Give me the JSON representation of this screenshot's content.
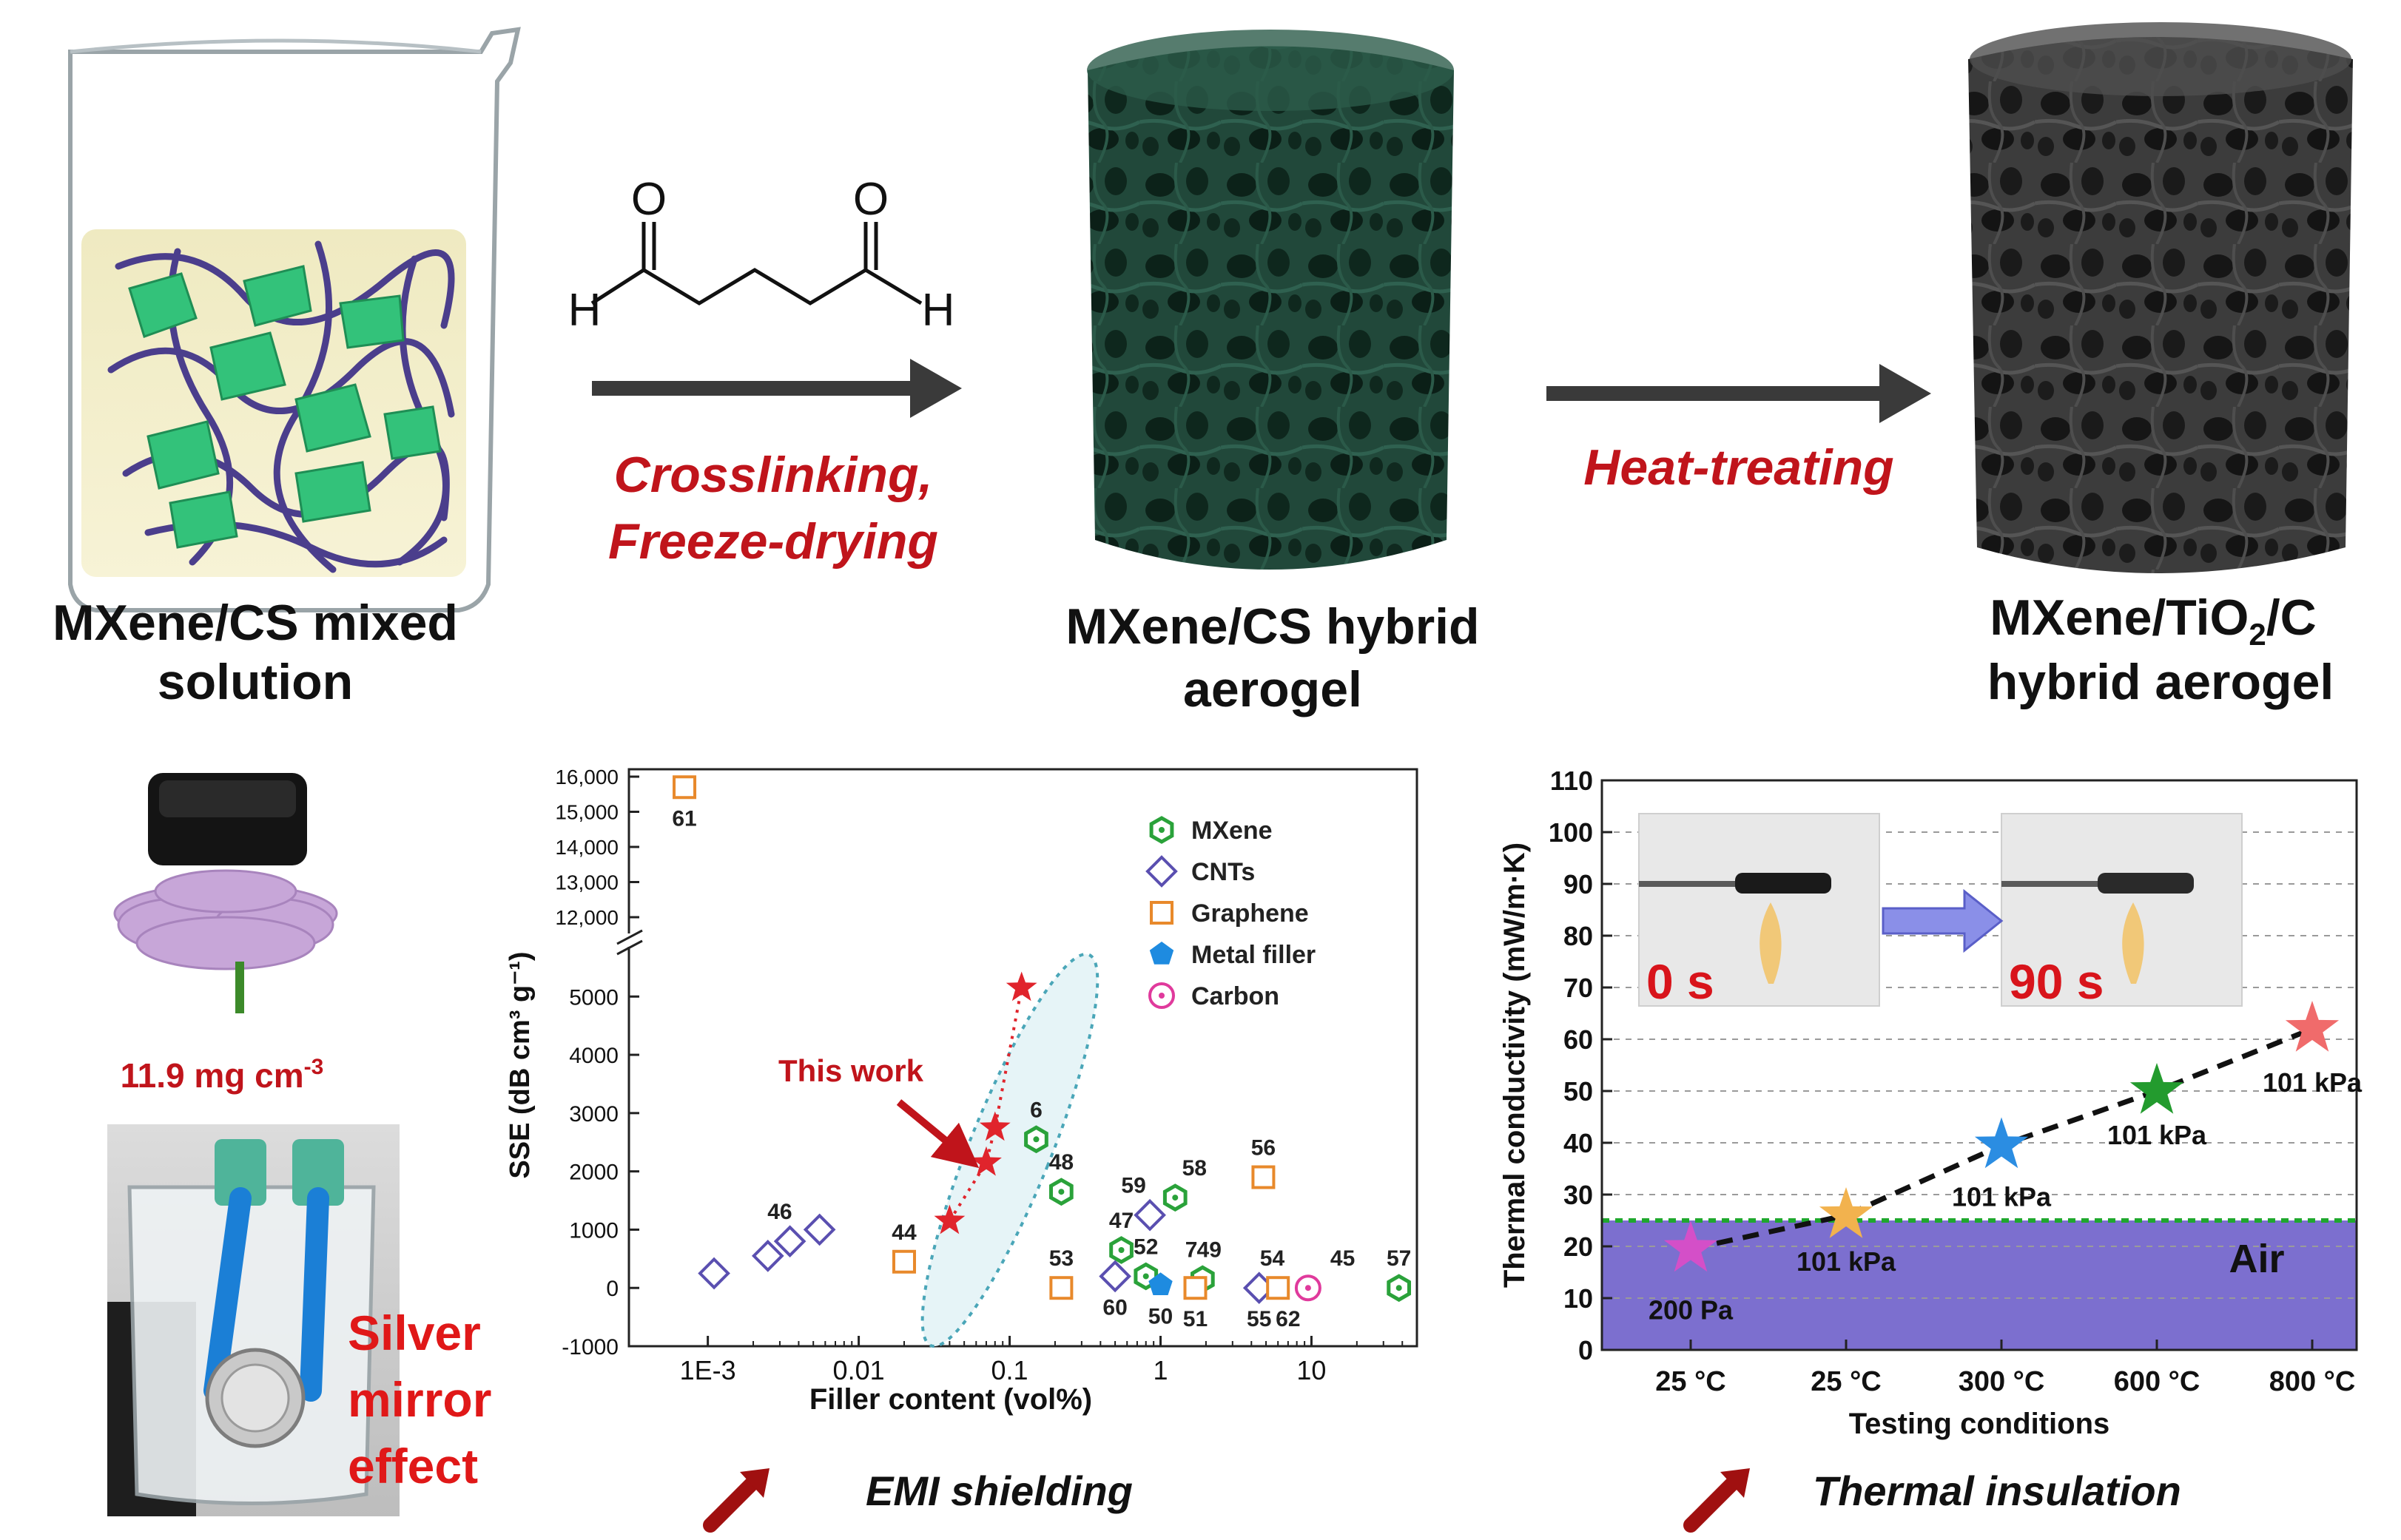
{
  "process": {
    "step1_label_line1": "MXene/CS mixed",
    "step1_label_line2": "solution",
    "step2_label_line1": "MXene/CS hybrid",
    "step2_label_line2": "aerogel",
    "step3_label_line1_a": "MXene/TiO",
    "step3_label_line1_sub": "2",
    "step3_label_line1_b": "/C",
    "step3_label_line2": "hybrid aerogel",
    "arrow1_label_line1": "Crosslinking,",
    "arrow1_label_line2": "Freeze-drying",
    "arrow2_label": "Heat-treating",
    "molecule_atom_o": "O",
    "molecule_atom_h": "H"
  },
  "left_panel": {
    "density_value": "11.9 mg cm",
    "density_exp": "-3",
    "silver_line1": "Silver",
    "silver_line2": "mirror",
    "silver_line3": "effect"
  },
  "captions": {
    "emi": "EMI shielding",
    "thermal": "Thermal insulation"
  },
  "colors": {
    "caption_red": "#c0141b",
    "mxene_green": "#2aa23a",
    "cnts_purple": "#5a4fb0",
    "graphene_orange": "#e8892b",
    "metal_blue": "#1e8be0",
    "carbon_pink": "#e03a9c",
    "air_fill": "#7c6fcf",
    "air_line": "#1fa82e"
  },
  "chart_data": [
    {
      "type": "scatter",
      "xlabel": "Filler content (vol%)",
      "ylabel": "SSE (dB cm³ g⁻¹)",
      "x_scale": "log",
      "xlim": [
        0.0003,
        50
      ],
      "x_ticks": [
        "1E-3",
        "0.01",
        "0.1",
        "1",
        "10"
      ],
      "y_ticks_lower": [
        "-1000",
        "0",
        "1000",
        "2000",
        "3000",
        "4000",
        "5000"
      ],
      "y_ticks_upper": [
        "12,000",
        "13,000",
        "14,000",
        "15,000",
        "16,000"
      ],
      "y_break": [
        5600,
        12000
      ],
      "legend": [
        "MXene",
        "CNTs",
        "Graphene",
        "Metal filler",
        "Carbon"
      ],
      "legend_position": "top-right",
      "annotation": "This work",
      "series": [
        {
          "name": "MXene",
          "points": [
            [
              0.15,
              2550
            ],
            [
              0.22,
              1650
            ],
            [
              0.55,
              650
            ],
            [
              0.8,
              200
            ],
            [
              1.25,
              1550
            ],
            [
              1.9,
              150
            ],
            [
              38,
              0
            ]
          ]
        },
        {
          "name": "CNTs",
          "points": [
            [
              0.0011,
              250
            ],
            [
              0.0025,
              550
            ],
            [
              0.0035,
              800
            ],
            [
              0.0055,
              1000
            ],
            [
              0.5,
              200
            ],
            [
              0.85,
              1250
            ],
            [
              4.5,
              0
            ]
          ]
        },
        {
          "name": "Graphene",
          "points": [
            [
              0.0007,
              15700
            ],
            [
              0.02,
              450
            ],
            [
              0.22,
              0
            ],
            [
              1.7,
              0
            ],
            [
              4.8,
              1900
            ],
            [
              6,
              0
            ]
          ]
        },
        {
          "name": "Metal filler",
          "points": [
            [
              1.0,
              50
            ]
          ]
        },
        {
          "name": "Carbon",
          "points": [
            [
              9.5,
              0
            ]
          ]
        },
        {
          "name": "This work",
          "points": [
            [
              0.04,
              1150
            ],
            [
              0.07,
              2150
            ],
            [
              0.08,
              2750
            ],
            [
              0.12,
              5150
            ]
          ]
        }
      ],
      "point_labels": [
        {
          "text": "61",
          "x": 0.0007,
          "y": 15700,
          "pos": "below"
        },
        {
          "text": "46",
          "x": 0.003,
          "y": 800,
          "pos": "above"
        },
        {
          "text": "44",
          "x": 0.02,
          "y": 450,
          "pos": "above"
        },
        {
          "text": "6",
          "x": 0.15,
          "y": 2550,
          "pos": "above"
        },
        {
          "text": "48",
          "x": 0.22,
          "y": 1650,
          "pos": "above"
        },
        {
          "text": "53",
          "x": 0.22,
          "y": 0,
          "pos": "above"
        },
        {
          "text": "59",
          "x": 0.85,
          "y": 1250,
          "pos": "above-left"
        },
        {
          "text": "58",
          "x": 1.25,
          "y": 1550,
          "pos": "above-right"
        },
        {
          "text": "47",
          "x": 0.55,
          "y": 650,
          "pos": "above"
        },
        {
          "text": "52",
          "x": 0.8,
          "y": 200,
          "pos": "above"
        },
        {
          "text": "7",
          "x": 1.6,
          "y": 150,
          "pos": "above"
        },
        {
          "text": "49",
          "x": 2.1,
          "y": 150,
          "pos": "above"
        },
        {
          "text": "60",
          "x": 0.5,
          "y": 200,
          "pos": "below"
        },
        {
          "text": "50",
          "x": 1.0,
          "y": 50,
          "pos": "below"
        },
        {
          "text": "51",
          "x": 1.7,
          "y": 0,
          "pos": "below"
        },
        {
          "text": "56",
          "x": 4.8,
          "y": 1900,
          "pos": "above"
        },
        {
          "text": "54",
          "x": 5.5,
          "y": 0,
          "pos": "above"
        },
        {
          "text": "45",
          "x": 12,
          "y": 0,
          "pos": "above-right"
        },
        {
          "text": "55",
          "x": 4.5,
          "y": 0,
          "pos": "below"
        },
        {
          "text": "62",
          "x": 7,
          "y": 0,
          "pos": "below"
        },
        {
          "text": "57",
          "x": 38,
          "y": 0,
          "pos": "above"
        }
      ]
    },
    {
      "type": "scatter",
      "xlabel": "Testing conditions",
      "ylabel": "Thermal conductivity (mW/m·K)",
      "categories": [
        "25 °C",
        "25 °C",
        "300 °C",
        "600 °C",
        "800 °C"
      ],
      "ylim": [
        0,
        110
      ],
      "y_ticks": [
        "0",
        "10",
        "20",
        "30",
        "40",
        "50",
        "60",
        "70",
        "80",
        "90",
        "100",
        "110"
      ],
      "values": [
        19.5,
        26,
        39.5,
        50,
        62
      ],
      "point_labels": [
        "200 Pa",
        "101 kPa",
        "101 kPa",
        "101 kPa",
        "101 kPa"
      ],
      "reference": {
        "label": "Air",
        "y": 25
      },
      "inset_labels": [
        "0 s",
        "90 s"
      ]
    }
  ]
}
